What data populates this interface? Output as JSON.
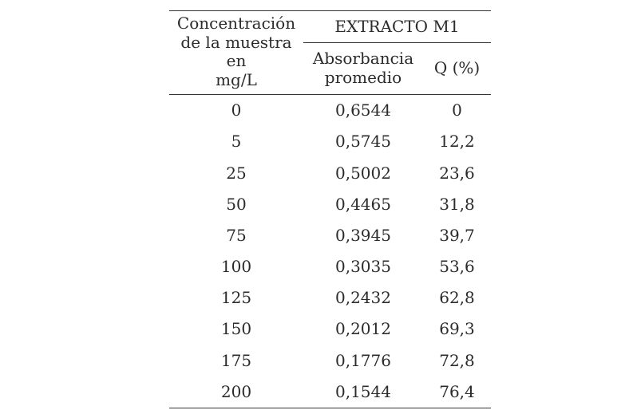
{
  "table": {
    "header": {
      "concentration_lines": [
        "Concentración",
        "de la muestra en",
        "mg/L"
      ],
      "group": "EXTRACTO M1",
      "absorbance_lines": [
        "Absorbancia",
        "promedio"
      ],
      "q": "Q (%)"
    },
    "rows": [
      {
        "concentration": "0",
        "absorbance": "0,6544",
        "q": "0"
      },
      {
        "concentration": "5",
        "absorbance": "0,5745",
        "q": "12,2"
      },
      {
        "concentration": "25",
        "absorbance": "0,5002",
        "q": "23,6"
      },
      {
        "concentration": "50",
        "absorbance": "0,4465",
        "q": "31,8"
      },
      {
        "concentration": "75",
        "absorbance": "0,3945",
        "q": "39,7"
      },
      {
        "concentration": "100",
        "absorbance": "0,3035",
        "q": "53,6"
      },
      {
        "concentration": "125",
        "absorbance": "0,2432",
        "q": "62,8"
      },
      {
        "concentration": "150",
        "absorbance": "0,2012",
        "q": "69,3"
      },
      {
        "concentration": "175",
        "absorbance": "0,1776",
        "q": "72,8"
      },
      {
        "concentration": "200",
        "absorbance": "0,1544",
        "q": "76,4"
      }
    ]
  }
}
